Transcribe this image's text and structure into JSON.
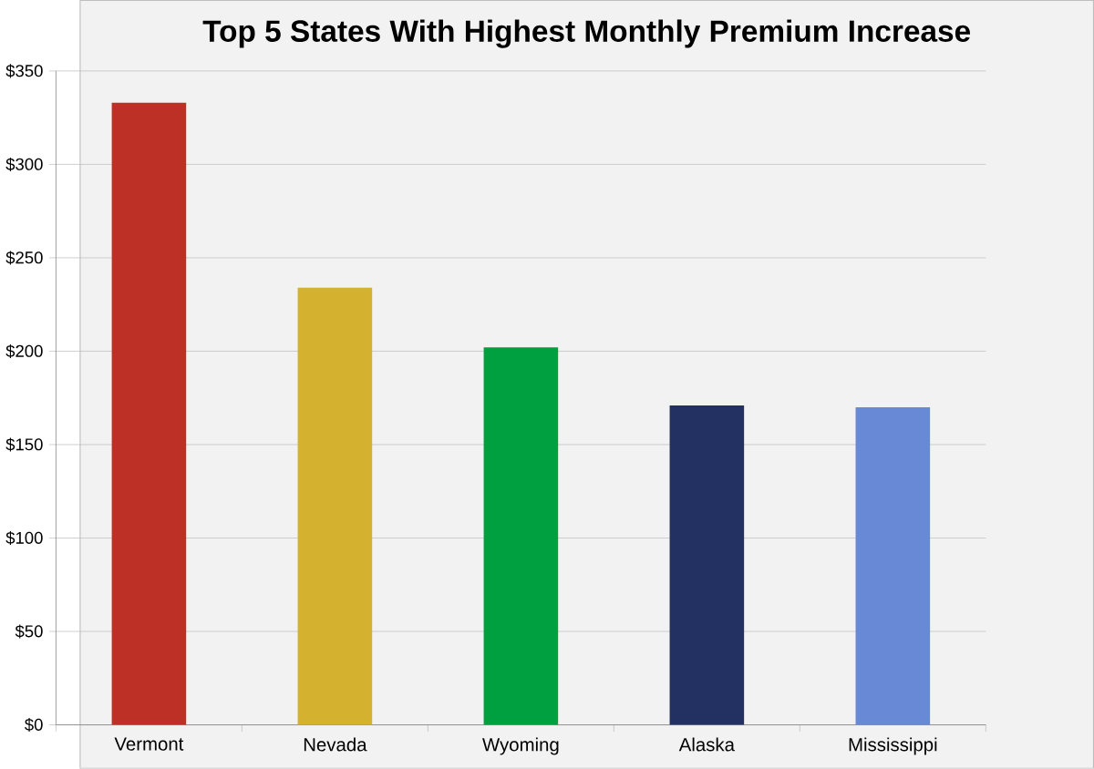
{
  "chart_data": {
    "type": "bar",
    "title": "Top 5 States With Highest Monthly Premium Increase",
    "categories": [
      "Vermont",
      "Nevada",
      "Wyoming",
      "Alaska",
      "Mississippi"
    ],
    "values": [
      333,
      234,
      202,
      171,
      170
    ],
    "colors": [
      "#bd3026",
      "#d4b12f",
      "#00a040",
      "#223161",
      "#6889d6"
    ],
    "ylim": [
      0,
      350
    ],
    "yticks": [
      {
        "value": 0,
        "label": "$0"
      },
      {
        "value": 50,
        "label": "$50"
      },
      {
        "value": 100,
        "label": "$100"
      },
      {
        "value": 150,
        "label": "$150"
      },
      {
        "value": 200,
        "label": "$200"
      },
      {
        "value": 250,
        "label": "$250"
      },
      {
        "value": 300,
        "label": "$300"
      },
      {
        "value": 350,
        "label": "$350"
      }
    ],
    "grid": "y"
  }
}
